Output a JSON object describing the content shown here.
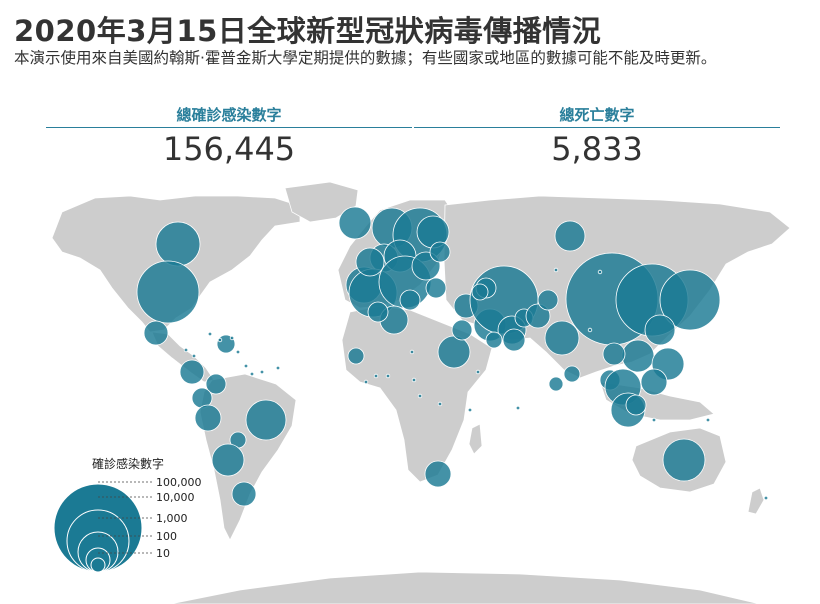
{
  "header": {
    "title": "2020年3月15日全球新型冠狀病毒傳播情況",
    "subtitle": "本演示使用來自美國約翰斯·霍普金斯大學定期提供的數據；有些國家或地區的數據可能不能及時更新。"
  },
  "stats": {
    "cases_label": "總確診感染數字",
    "cases_value": "156,445",
    "deaths_label": "總死亡數字",
    "deaths_value": "5,833"
  },
  "legend": {
    "title": "確診感染數字",
    "entries": [
      "100,000",
      "10,000",
      "1,000",
      "100",
      "10"
    ]
  },
  "colors": {
    "bubble": "#1b7a94",
    "land": "#cdcdcd",
    "accent": "#2a7f9b"
  }
}
